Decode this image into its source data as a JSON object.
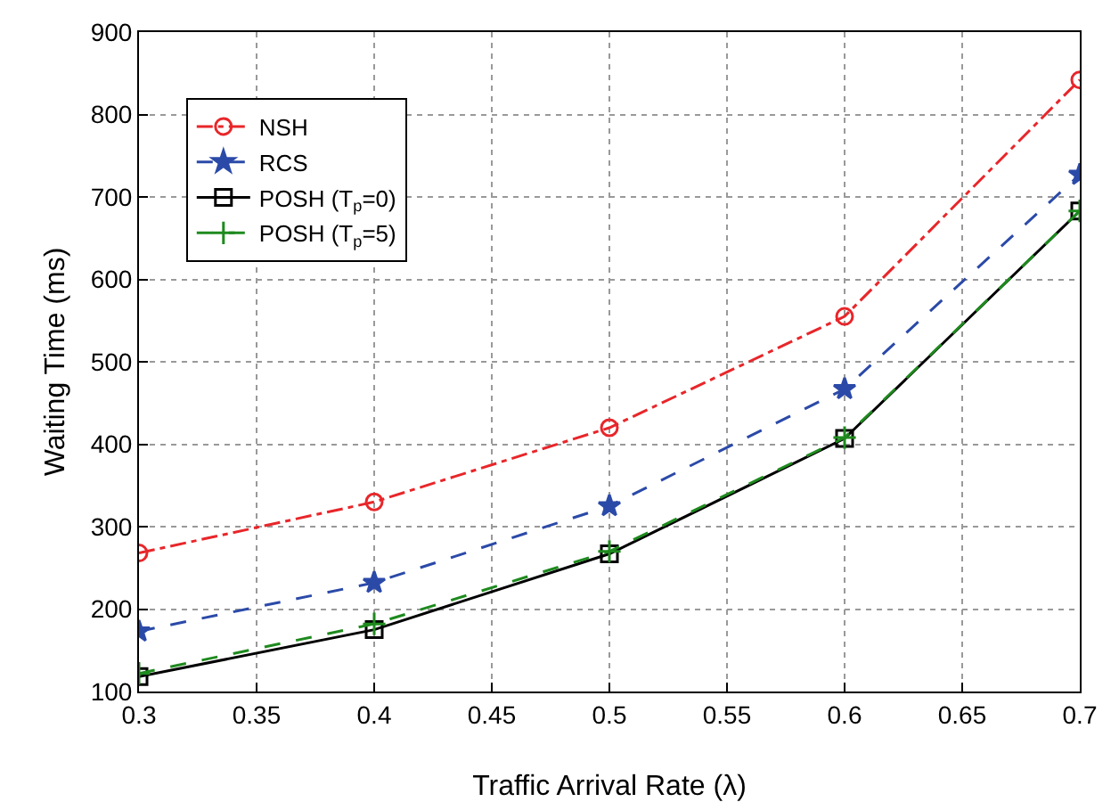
{
  "chart_data": {
    "type": "line",
    "xlabel": "Traffic Arrival Rate (λ)",
    "ylabel": "Waiting Time (ms)",
    "x": [
      0.3,
      0.4,
      0.5,
      0.6,
      0.7
    ],
    "xlim": [
      0.3,
      0.7
    ],
    "xticks": [
      0.3,
      0.35,
      0.4,
      0.45,
      0.5,
      0.55,
      0.6,
      0.65,
      0.7
    ],
    "ylim": [
      100,
      900
    ],
    "yticks": [
      100,
      200,
      300,
      400,
      500,
      600,
      700,
      800,
      900
    ],
    "grid": true,
    "legend": "top left",
    "series": [
      {
        "name": "NSH",
        "color": "#e8262a",
        "marker": "circle",
        "line_style": "dashdot",
        "values": [
          268,
          330,
          420,
          555,
          842
        ]
      },
      {
        "name": "RCS",
        "color": "#2b4aa8",
        "marker": "star",
        "line_style": "dashed",
        "values": [
          173,
          232,
          325,
          467,
          727
        ]
      },
      {
        "name": "POSH (T$_{p}$=0)",
        "color": "#000000",
        "marker": "square",
        "line_style": "solid",
        "values": [
          118,
          175,
          267,
          407,
          683
        ]
      },
      {
        "name": "POSH (T$_{p}$=5)",
        "color": "#1e8a1e",
        "marker": "cross",
        "line_style": "dashed",
        "values": [
          122,
          182,
          270,
          408,
          683
        ]
      }
    ]
  }
}
